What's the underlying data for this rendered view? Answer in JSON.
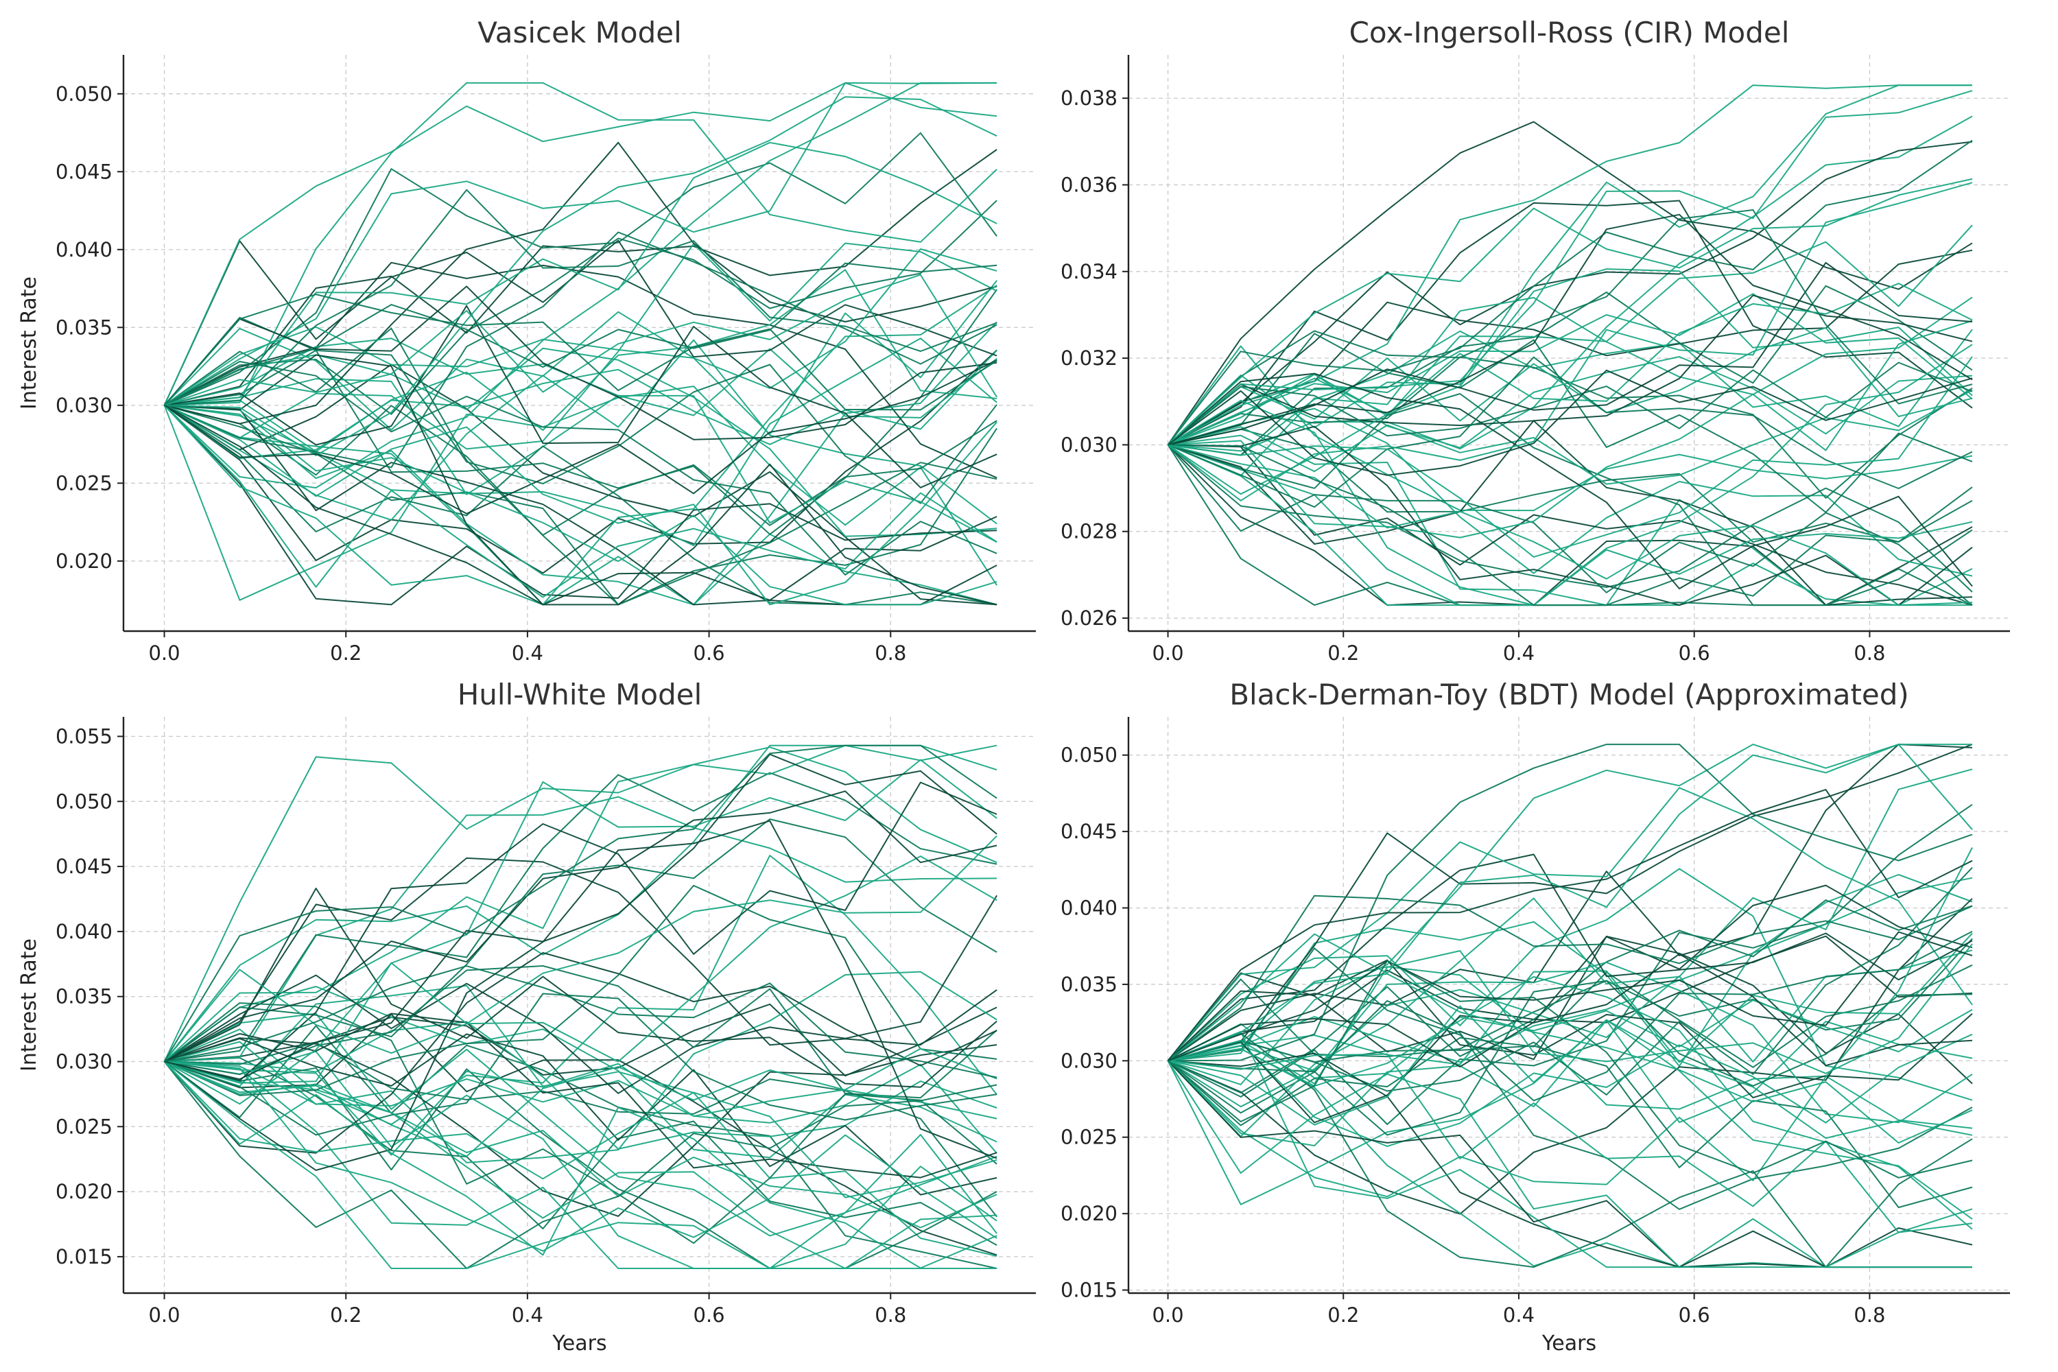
{
  "colors": {
    "dark": "#0b4a3a",
    "mid": "#0e7a5c",
    "light": "#1aa884",
    "grid": "#cccccc",
    "axis": "#222222"
  },
  "chart_data": [
    {
      "type": "line",
      "title": "Vasicek Model",
      "xlabel": "",
      "ylabel": "Interest Rate",
      "xlim": [
        -0.045,
        0.96
      ],
      "ylim": [
        0.0155,
        0.0525
      ],
      "xticks": [
        "0.0",
        "0.2",
        "0.4",
        "0.6",
        "0.8"
      ],
      "yticks": [
        "0.020",
        "0.025",
        "0.030",
        "0.035",
        "0.040",
        "0.045",
        "0.050"
      ],
      "x": [
        0,
        0.083,
        0.167,
        0.25,
        0.333,
        0.417,
        0.5,
        0.583,
        0.667,
        0.75,
        0.833,
        0.917
      ],
      "series_count": 50,
      "start": 0.03,
      "y_range": [
        0.0172,
        0.0507
      ],
      "grid": true
    },
    {
      "type": "line",
      "title": "Cox-Ingersoll-Ross (CIR) Model",
      "xlabel": "",
      "ylabel": "",
      "xlim": [
        -0.045,
        0.96
      ],
      "ylim": [
        0.0257,
        0.039
      ],
      "xticks": [
        "0.0",
        "0.2",
        "0.4",
        "0.6",
        "0.8"
      ],
      "yticks": [
        "0.026",
        "0.028",
        "0.030",
        "0.032",
        "0.034",
        "0.036",
        "0.038"
      ],
      "x": [
        0,
        0.083,
        0.167,
        0.25,
        0.333,
        0.417,
        0.5,
        0.583,
        0.667,
        0.75,
        0.833,
        0.917
      ],
      "series_count": 50,
      "start": 0.03,
      "y_range": [
        0.0263,
        0.0383
      ],
      "grid": true
    },
    {
      "type": "line",
      "title": "Hull-White Model",
      "xlabel": "Years",
      "ylabel": "Interest Rate",
      "xlim": [
        -0.045,
        0.96
      ],
      "ylim": [
        0.0122,
        0.0565
      ],
      "xticks": [
        "0.0",
        "0.2",
        "0.4",
        "0.6",
        "0.8"
      ],
      "yticks": [
        "0.015",
        "0.020",
        "0.025",
        "0.030",
        "0.035",
        "0.040",
        "0.045",
        "0.050",
        "0.055"
      ],
      "x": [
        0,
        0.083,
        0.167,
        0.25,
        0.333,
        0.417,
        0.5,
        0.583,
        0.667,
        0.75,
        0.833,
        0.917
      ],
      "series_count": 50,
      "start": 0.03,
      "y_range": [
        0.0141,
        0.0543
      ],
      "grid": true
    },
    {
      "type": "line",
      "title": "Black-Derman-Toy (BDT) Model (Approximated)",
      "xlabel": "Years",
      "ylabel": "",
      "xlim": [
        -0.045,
        0.96
      ],
      "ylim": [
        0.0148,
        0.0525
      ],
      "xticks": [
        "0.0",
        "0.2",
        "0.4",
        "0.6",
        "0.8"
      ],
      "yticks": [
        "0.015",
        "0.020",
        "0.025",
        "0.030",
        "0.035",
        "0.040",
        "0.045",
        "0.050"
      ],
      "x": [
        0,
        0.083,
        0.167,
        0.25,
        0.333,
        0.417,
        0.5,
        0.583,
        0.667,
        0.75,
        0.833,
        0.917
      ],
      "series_count": 50,
      "start": 0.03,
      "y_range": [
        0.0165,
        0.0507
      ],
      "grid": true
    }
  ]
}
